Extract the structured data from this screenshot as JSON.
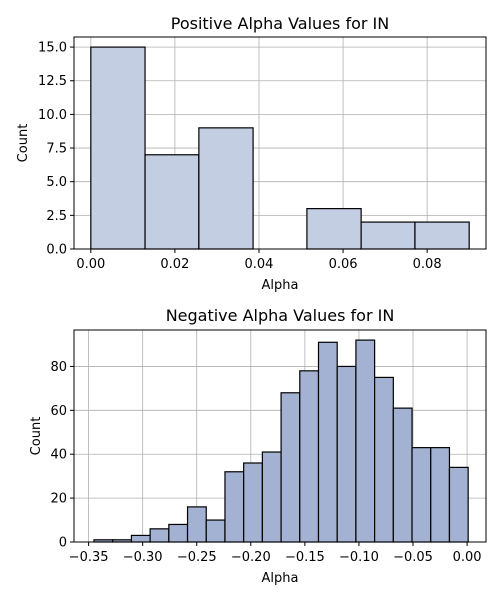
{
  "chart_data": [
    {
      "type": "histogram",
      "title": "Positive Alpha Values for IN",
      "xlabel": "Alpha",
      "ylabel": "Count",
      "xlim": [
        -0.004,
        0.094
      ],
      "ylim": [
        0,
        15.75
      ],
      "xticks": [
        0.0,
        0.02,
        0.04,
        0.06,
        0.08
      ],
      "xtick_labels": [
        "0.00",
        "0.02",
        "0.04",
        "0.06",
        "0.08"
      ],
      "yticks": [
        0,
        2.5,
        5,
        7.5,
        10,
        12.5,
        15
      ],
      "ytick_labels": [
        "0.0",
        "2.5",
        "5.0",
        "7.5",
        "10.0",
        "12.5",
        "15.0"
      ],
      "grid": true,
      "bar_color": "#c4cee3",
      "bins": [
        {
          "x0": 0.0,
          "x1": 0.0129,
          "count": 15
        },
        {
          "x0": 0.0129,
          "x1": 0.0257,
          "count": 7
        },
        {
          "x0": 0.0257,
          "x1": 0.0386,
          "count": 9
        },
        {
          "x0": 0.0386,
          "x1": 0.0514,
          "count": 0
        },
        {
          "x0": 0.0514,
          "x1": 0.0643,
          "count": 3
        },
        {
          "x0": 0.0643,
          "x1": 0.0771,
          "count": 2
        },
        {
          "x0": 0.0771,
          "x1": 0.09,
          "count": 2
        }
      ]
    },
    {
      "type": "histogram",
      "title": "Negative Alpha Values for IN",
      "xlabel": "Alpha",
      "ylabel": "Count",
      "xlim": [
        -0.3635,
        0.0175
      ],
      "ylim": [
        0,
        96.6
      ],
      "xticks": [
        -0.35,
        -0.3,
        -0.25,
        -0.2,
        -0.15,
        -0.1,
        -0.05,
        0.0
      ],
      "xtick_labels": [
        "−0.35",
        "−0.30",
        "−0.25",
        "−0.20",
        "−0.15",
        "−0.10",
        "−0.05",
        "0.00"
      ],
      "yticks": [
        0,
        20,
        40,
        60,
        80
      ],
      "ytick_labels": [
        "0",
        "20",
        "40",
        "60",
        "80"
      ],
      "grid": true,
      "bar_color": "#a3b1d3",
      "bin_start": -0.345,
      "bin_width": 0.0173,
      "counts": [
        1,
        1,
        3,
        6,
        8,
        16,
        10,
        32,
        36,
        41,
        68,
        78,
        91,
        80,
        92,
        75,
        61,
        43,
        43,
        34
      ]
    }
  ]
}
